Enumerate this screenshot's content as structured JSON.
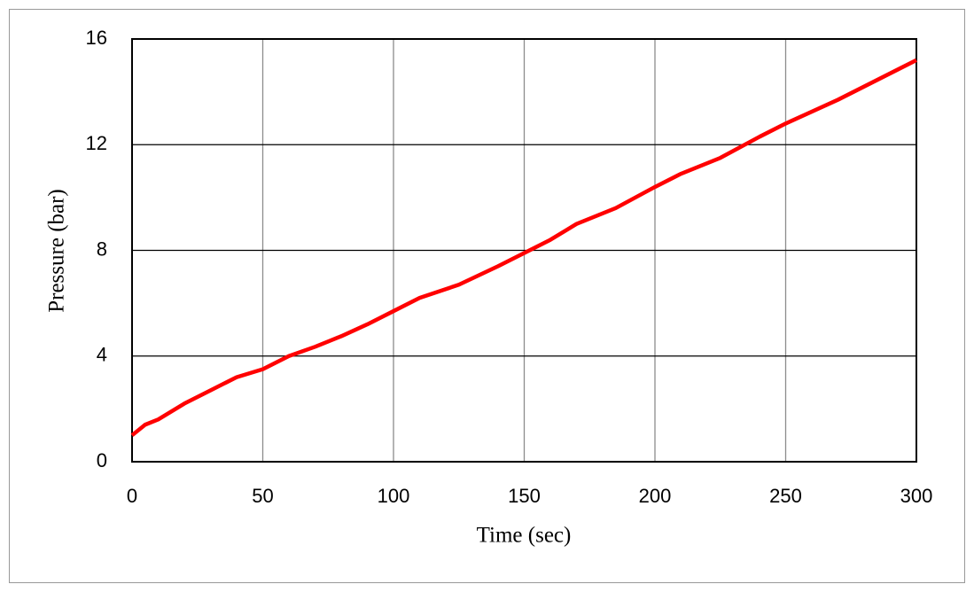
{
  "chart_data": {
    "type": "line",
    "x_label": "Time (sec)",
    "y_label": "Pressure (bar)",
    "x": [
      0,
      5,
      10,
      20,
      30,
      40,
      50,
      60,
      70,
      80,
      90,
      100,
      110,
      125,
      140,
      150,
      160,
      170,
      185,
      200,
      210,
      225,
      240,
      250,
      270,
      300
    ],
    "series": [
      {
        "color": "#ff0000",
        "values": [
          1.0,
          1.4,
          1.6,
          2.2,
          2.7,
          3.2,
          3.5,
          4.0,
          4.35,
          4.75,
          5.2,
          5.7,
          6.2,
          6.7,
          7.4,
          7.9,
          8.4,
          9.0,
          9.6,
          10.4,
          10.9,
          11.5,
          12.3,
          12.8,
          13.7,
          15.2
        ]
      }
    ],
    "xlim": [
      0,
      300
    ],
    "xticks": [
      0,
      50,
      100,
      150,
      200,
      250,
      300
    ],
    "ylim": [
      0,
      16
    ],
    "yticks": [
      0,
      4,
      8,
      12,
      16
    ],
    "grid": true
  }
}
